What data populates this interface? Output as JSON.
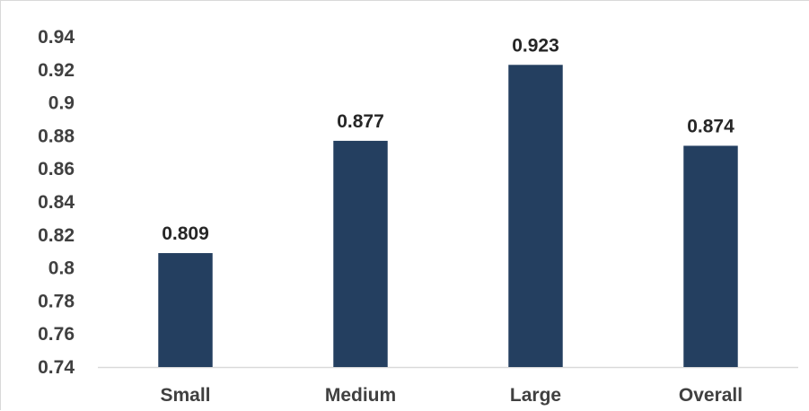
{
  "chart_data": {
    "type": "bar",
    "title": "",
    "xlabel": "",
    "ylabel": "",
    "categories": [
      "Small",
      "Medium",
      "Large",
      "Overall"
    ],
    "values": [
      0.809,
      0.877,
      0.923,
      0.874
    ],
    "data_labels": [
      "0.809",
      "0.877",
      "0.923",
      "0.874"
    ],
    "ylim": [
      0.74,
      0.94
    ],
    "yticks": [
      0.74,
      0.76,
      0.78,
      0.8,
      0.82,
      0.84,
      0.86,
      0.88,
      0.9,
      0.92,
      0.94
    ],
    "ytick_labels": [
      "0.74",
      "0.76",
      "0.78",
      "0.8",
      "0.82",
      "0.84",
      "0.86",
      "0.88",
      "0.9",
      "0.92",
      "0.94"
    ],
    "grid": false,
    "legend": "none",
    "bar_color": "#243f60"
  }
}
